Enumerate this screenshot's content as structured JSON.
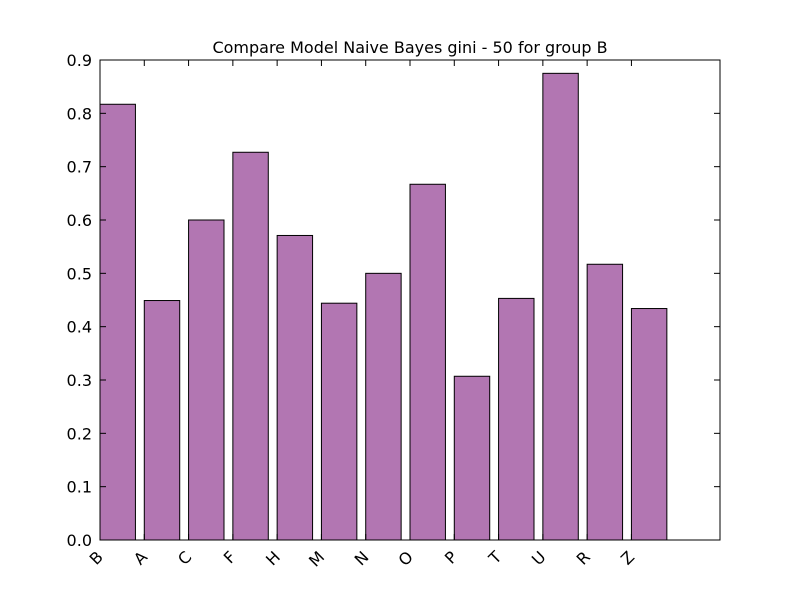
{
  "chart_data": {
    "type": "bar",
    "title": "Compare Model Naive Bayes gini - 50 for group B",
    "xlabel": "",
    "ylabel": "",
    "categories": [
      "B",
      "A",
      "C",
      "F",
      "H",
      "M",
      "N",
      "O",
      "P",
      "T",
      "U",
      "R",
      "Z"
    ],
    "values": [
      0.817,
      0.449,
      0.6,
      0.727,
      0.571,
      0.444,
      0.5,
      0.667,
      0.307,
      0.453,
      0.875,
      0.517,
      0.434
    ],
    "ylim": [
      0,
      0.9
    ],
    "yticks": [
      "0.0",
      "0.1",
      "0.2",
      "0.3",
      "0.4",
      "0.5",
      "0.6",
      "0.7",
      "0.8",
      "0.9"
    ],
    "grid": false,
    "legend": "none",
    "bar_color": "#b276b2",
    "edge_color": "#000000"
  }
}
